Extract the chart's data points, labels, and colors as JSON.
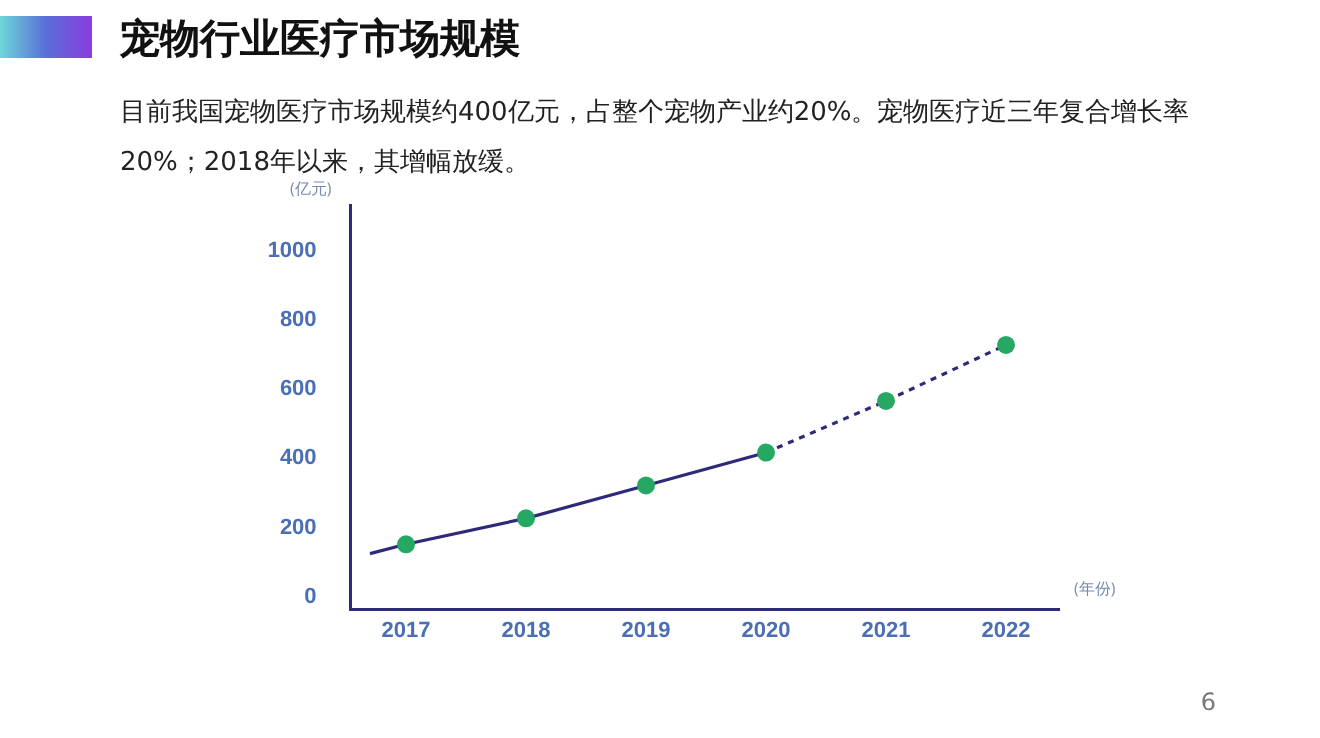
{
  "chart_data": {
    "type": "line",
    "title": "宠物行业医疗市场规模",
    "subtitle": "目前我国宠物医疗市场规模约400亿元，占整个宠物产业约20%。宠物医疗近三年复合增长率20%；2018年以来，其增幅放缓。",
    "xlabel": "(年份)",
    "ylabel": "(亿元)",
    "series": [
      {
        "color": "#2e2a7a",
        "line_style": "solid",
        "marker": "none",
        "x": [
          2016.7,
          2017,
          2018,
          2019,
          2020
        ],
        "values": [
          120,
          147,
          222,
          317,
          412
        ]
      },
      {
        "color": "#2e2a7a",
        "line_style": "dotted",
        "marker": "none",
        "x": [
          2020,
          2021,
          2022
        ],
        "values": [
          412,
          561,
          723
        ]
      },
      {
        "type": "scatter",
        "color": "#27a862",
        "marker": "circle",
        "x": [
          2017,
          2018,
          2019,
          2020,
          2021,
          2022
        ],
        "values": [
          147,
          222,
          317,
          412,
          561,
          723
        ]
      }
    ],
    "xlim": [
      2016.55,
      2022.45
    ],
    "xticks": [
      2017,
      2018,
      2019,
      2020,
      2021,
      2022
    ],
    "ylim": [
      -37,
      1130
    ],
    "yticks": [
      0,
      200,
      400,
      600,
      800,
      1000
    ],
    "annotations": [
      "6"
    ]
  }
}
